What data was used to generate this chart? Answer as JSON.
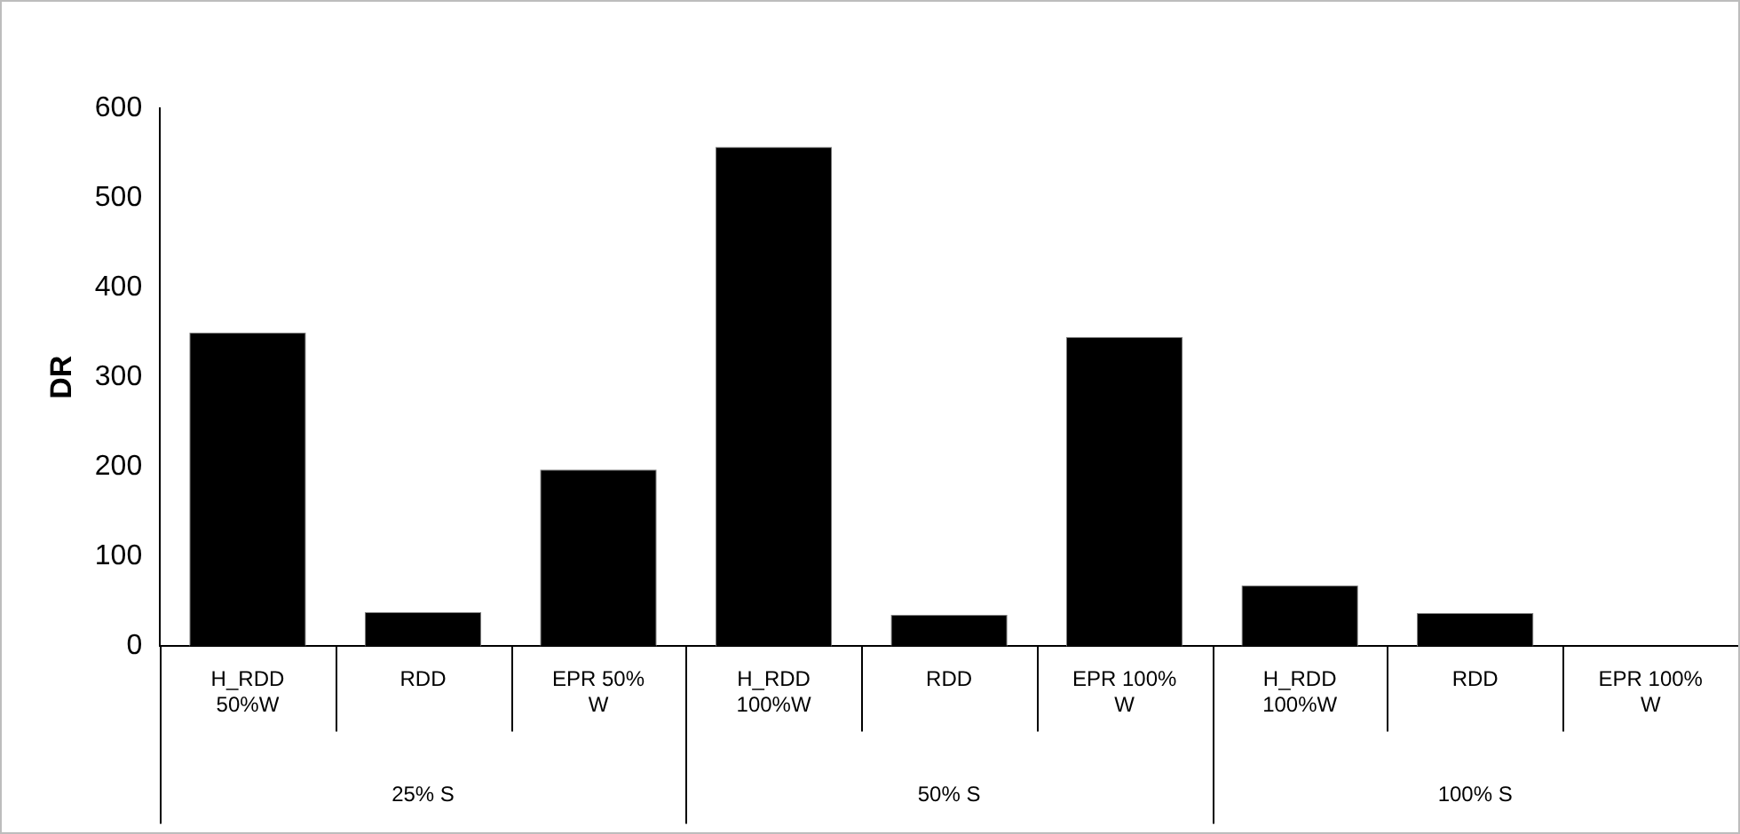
{
  "chart_data": {
    "type": "bar",
    "ylabel": "DR",
    "categories": [
      "H_RDD 50%W",
      "RDD",
      "EPR 50% W",
      "H_RDD 100%W",
      "RDD",
      "EPR 100% W",
      "H_RDD 100%W",
      "RDD",
      "EPR 100% W"
    ],
    "values": [
      350,
      38,
      197,
      557,
      35,
      345,
      68,
      37,
      0
    ],
    "color": "#000000",
    "ylim": [
      0,
      600
    ],
    "yticks": [
      0,
      100,
      200,
      300,
      400,
      500,
      600
    ],
    "grid": false,
    "legend": false,
    "annotations": [
      "25% S",
      "50% S",
      "100% S"
    ]
  }
}
